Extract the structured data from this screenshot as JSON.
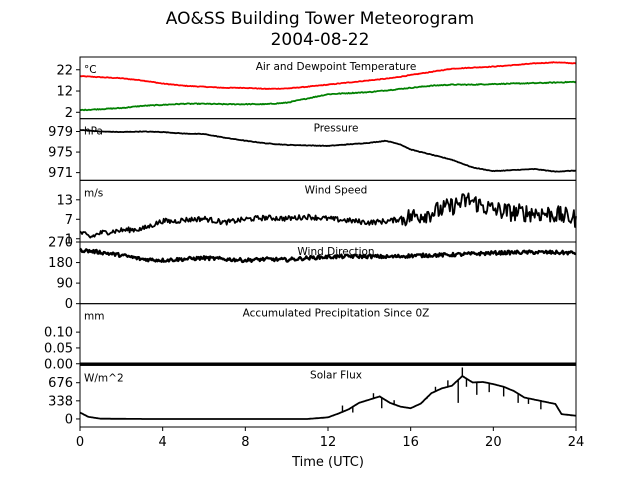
{
  "title": "AO&SS Building Tower Meteorogram",
  "subtitle": "2004-08-22",
  "xlabel": "Time (UTC)",
  "chart_data": {
    "type": "line",
    "x_ticks": [
      "0",
      "4",
      "8",
      "12",
      "16",
      "20",
      "24"
    ],
    "xlim": [
      0,
      24
    ],
    "panels": [
      {
        "id": "temp",
        "title": "Air and Dewpoint Temperature",
        "unit": "°C",
        "ylim": [
          -1,
          28
        ],
        "yticks": [
          2,
          12,
          22
        ],
        "ytick_labels": [
          "2",
          "12",
          "22"
        ],
        "series": [
          {
            "color": "#ff0000",
            "noise": 0.15,
            "points": [
              [
                0,
                19
              ],
              [
                1,
                18.5
              ],
              [
                2,
                18
              ],
              [
                3,
                17
              ],
              [
                4,
                15.5
              ],
              [
                5,
                14.5
              ],
              [
                6,
                14
              ],
              [
                7,
                13.5
              ],
              [
                8,
                13.5
              ],
              [
                9,
                13
              ],
              [
                10,
                13.2
              ],
              [
                11,
                14
              ],
              [
                12,
                15
              ],
              [
                13,
                16
              ],
              [
                14,
                17
              ],
              [
                15,
                18
              ],
              [
                16,
                19.5
              ],
              [
                17,
                21
              ],
              [
                18,
                22.5
              ],
              [
                19,
                23
              ],
              [
                20,
                23.5
              ],
              [
                21,
                24.2
              ],
              [
                22,
                25
              ],
              [
                23,
                25.5
              ],
              [
                24,
                25
              ]
            ]
          },
          {
            "color": "#008000",
            "noise": 0.2,
            "points": [
              [
                0,
                3
              ],
              [
                1,
                3.5
              ],
              [
                2,
                4
              ],
              [
                3,
                5
              ],
              [
                4,
                5.5
              ],
              [
                5,
                6
              ],
              [
                6,
                6
              ],
              [
                7,
                5.8
              ],
              [
                8,
                5.8
              ],
              [
                9,
                5.8
              ],
              [
                10,
                6.5
              ],
              [
                11,
                8.5
              ],
              [
                12,
                10.5
              ],
              [
                13,
                11
              ],
              [
                14,
                11.5
              ],
              [
                15,
                12.5
              ],
              [
                16,
                13.5
              ],
              [
                17,
                14.5
              ],
              [
                18,
                15
              ],
              [
                19,
                15
              ],
              [
                20,
                15.3
              ],
              [
                21,
                15.5
              ],
              [
                22,
                15.7
              ],
              [
                23,
                16
              ],
              [
                24,
                16.3
              ]
            ]
          }
        ]
      },
      {
        "id": "press",
        "title": "Pressure",
        "unit": "hPa",
        "ylim": [
          969.5,
          981.5
        ],
        "yticks": [
          971,
          975,
          979
        ],
        "ytick_labels": [
          "971",
          "975",
          "979"
        ],
        "series": [
          {
            "color": "#000000",
            "noise": 0.05,
            "points": [
              [
                0,
                979.3
              ],
              [
                1,
                979
              ],
              [
                2,
                978.9
              ],
              [
                3,
                979
              ],
              [
                4,
                978.9
              ],
              [
                5,
                978.6
              ],
              [
                6,
                978.5
              ],
              [
                7,
                977.8
              ],
              [
                8,
                977.2
              ],
              [
                9,
                976.7
              ],
              [
                10,
                976.4
              ],
              [
                11,
                976.3
              ],
              [
                12,
                976.2
              ],
              [
                13,
                976.5
              ],
              [
                14,
                976.8
              ],
              [
                14.8,
                977.2
              ],
              [
                15.5,
                976.5
              ],
              [
                16,
                975.5
              ],
              [
                17,
                974.5
              ],
              [
                18,
                973.5
              ],
              [
                19,
                972
              ],
              [
                20,
                971.3
              ],
              [
                21,
                971.5
              ],
              [
                22,
                971.7
              ],
              [
                23,
                971.2
              ],
              [
                24,
                971.4
              ]
            ]
          }
        ]
      },
      {
        "id": "wspd",
        "title": "Wind Speed",
        "unit": "m/s",
        "ylim": [
          0,
          19
        ],
        "yticks": [
          1,
          7,
          13
        ],
        "ytick_labels": [
          "1",
          "7",
          "13"
        ],
        "series": [
          {
            "color": "#000000",
            "noise": 0.8,
            "noise_late": 2.8,
            "points": [
              [
                0,
                3
              ],
              [
                0.5,
                1.5
              ],
              [
                1,
                2.8
              ],
              [
                2,
                3.6
              ],
              [
                3,
                4
              ],
              [
                3.5,
                5.2
              ],
              [
                4,
                6.5
              ],
              [
                4.5,
                6.3
              ],
              [
                5,
                6.8
              ],
              [
                6,
                7.2
              ],
              [
                7,
                6
              ],
              [
                8,
                7
              ],
              [
                9,
                7.5
              ],
              [
                10,
                7.2
              ],
              [
                11,
                7.8
              ],
              [
                12,
                7.2
              ],
              [
                13,
                6.6
              ],
              [
                14,
                6
              ],
              [
                15,
                6.5
              ],
              [
                16,
                7.8
              ],
              [
                17,
                9
              ],
              [
                18,
                11
              ],
              [
                18.8,
                13
              ],
              [
                19.5,
                11
              ],
              [
                20,
                10
              ],
              [
                21,
                9
              ],
              [
                22,
                9
              ],
              [
                23,
                8.5
              ],
              [
                24,
                7.2
              ]
            ]
          }
        ]
      },
      {
        "id": "wdir",
        "title": "Wind Direction",
        "unit": "",
        "ylim": [
          0,
          270
        ],
        "yticks": [
          0,
          90,
          180,
          270
        ],
        "ytick_labels": [
          "0",
          "90",
          "180",
          "270"
        ],
        "series": [
          {
            "color": "#000000",
            "noise": 8,
            "points": [
              [
                0,
                235
              ],
              [
                1,
                225
              ],
              [
                2,
                212
              ],
              [
                3,
                195
              ],
              [
                4,
                190
              ],
              [
                5,
                195
              ],
              [
                6,
                200
              ],
              [
                7,
                195
              ],
              [
                8,
                190
              ],
              [
                9,
                195
              ],
              [
                10,
                192
              ],
              [
                11,
                200
              ],
              [
                12,
                205
              ],
              [
                13,
                207
              ],
              [
                14,
                207
              ],
              [
                15,
                205
              ],
              [
                16,
                210
              ],
              [
                17,
                212
              ],
              [
                18,
                214
              ],
              [
                19,
                218
              ],
              [
                20,
                222
              ],
              [
                21,
                224
              ],
              [
                22,
                225
              ],
              [
                23,
                224
              ],
              [
                24,
                222
              ]
            ]
          }
        ]
      },
      {
        "id": "precip",
        "title": "Accumulated Precipitation Since 0Z",
        "unit": "mm",
        "ylim": [
          -0.005,
          0.19
        ],
        "yticks": [
          0,
          0.05,
          0.1
        ],
        "ytick_labels": [
          "0.00",
          "0.05",
          "0.10"
        ],
        "series": [
          {
            "color": "#000000",
            "noise": 0,
            "points": [
              [
                0,
                0
              ],
              [
                24,
                0
              ]
            ]
          }
        ]
      },
      {
        "id": "solar",
        "title": "Solar Flux",
        "unit": "W/m^2",
        "ylim": [
          -150,
          1000
        ],
        "yticks": [
          0,
          338,
          676
        ],
        "ytick_labels": [
          "0",
          "338",
          "676"
        ],
        "series": [
          {
            "color": "#000000",
            "noise": 0,
            "points": [
              [
                0,
                120
              ],
              [
                0.4,
                40
              ],
              [
                1,
                5
              ],
              [
                3,
                0
              ],
              [
                6,
                0
              ],
              [
                9,
                0
              ],
              [
                11,
                0
              ],
              [
                12,
                30
              ],
              [
                12.5,
                100
              ],
              [
                13,
                180
              ],
              [
                13.5,
                300
              ],
              [
                14,
                360
              ],
              [
                14.5,
                420
              ],
              [
                15,
                300
              ],
              [
                15.5,
                230
              ],
              [
                16,
                200
              ],
              [
                16.5,
                290
              ],
              [
                17,
                480
              ],
              [
                17.5,
                570
              ],
              [
                18,
                620
              ],
              [
                18.5,
                800
              ],
              [
                19,
                680
              ],
              [
                19.5,
                690
              ],
              [
                20,
                650
              ],
              [
                20.5,
                600
              ],
              [
                21,
                520
              ],
              [
                21.5,
                400
              ],
              [
                22,
                360
              ],
              [
                22.5,
                320
              ],
              [
                23,
                280
              ],
              [
                23.3,
                90
              ],
              [
                24,
                60
              ]
            ]
          }
        ],
        "spikes": [
          [
            12.7,
            250
          ],
          [
            13.2,
            120
          ],
          [
            13.6,
            300
          ],
          [
            14.2,
            480
          ],
          [
            14.6,
            200
          ],
          [
            15.2,
            350
          ],
          [
            16.8,
            380
          ],
          [
            17.2,
            600
          ],
          [
            17.8,
            720
          ],
          [
            18.3,
            300
          ],
          [
            18.5,
            960
          ],
          [
            18.7,
            600
          ],
          [
            19.2,
            450
          ],
          [
            19.8,
            500
          ],
          [
            20.5,
            420
          ],
          [
            21.2,
            300
          ],
          [
            21.7,
            280
          ],
          [
            22.3,
            180
          ]
        ]
      }
    ]
  }
}
